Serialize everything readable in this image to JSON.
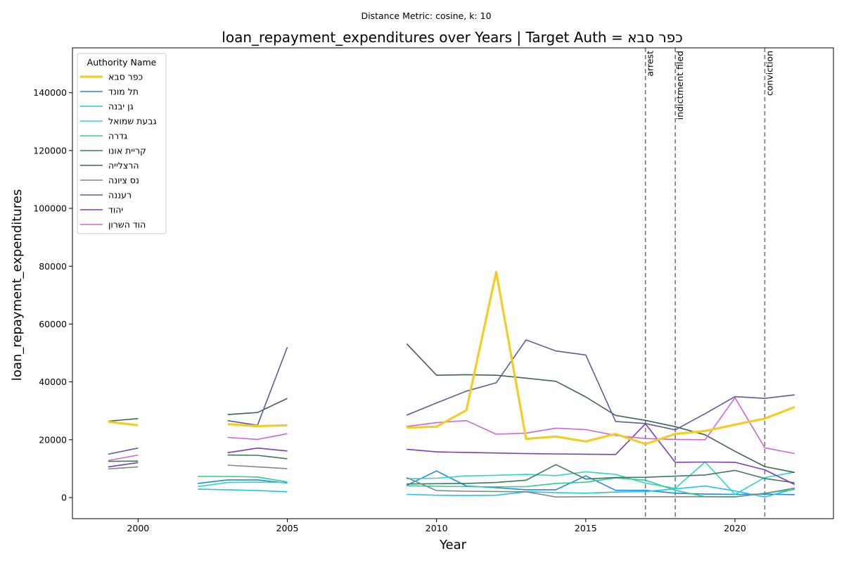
{
  "chart_data": {
    "type": "line",
    "suptitle": "Distance Metric: cosine, k: 10",
    "title": "loan_repayment_expenditures over Years | Target Auth = כפר סבא",
    "xlabel": "Year",
    "ylabel": "loan_repayment_expenditures",
    "xlim": [
      1997.8,
      2023.3
    ],
    "ylim": [
      -7300,
      155500
    ],
    "xticks": [
      2000,
      2005,
      2010,
      2015,
      2020
    ],
    "yticks": [
      0,
      20000,
      40000,
      60000,
      80000,
      100000,
      120000,
      140000
    ],
    "legend": {
      "title": "Authority Name",
      "placement": "top-left"
    },
    "events": [
      {
        "label": "arrest",
        "x": 2017
      },
      {
        "label": "indictment filed",
        "x": 2018
      },
      {
        "label": "conviction",
        "x": 2021
      }
    ],
    "series": [
      {
        "name": "כפר סבא",
        "color": "#f2cd24",
        "target": true,
        "points": [
          [
            1999,
            26200
          ],
          [
            2000,
            25000
          ],
          [
            null,
            null
          ],
          [
            2003,
            25400
          ],
          [
            2004,
            24700
          ],
          [
            2005,
            25000
          ],
          [
            null,
            null
          ],
          [
            2009,
            24200
          ],
          [
            2010,
            24500
          ],
          [
            2011,
            30200
          ],
          [
            2012,
            78000
          ],
          [
            2013,
            20300
          ],
          [
            2014,
            21100
          ],
          [
            2015,
            19400
          ],
          [
            2016,
            22000
          ],
          [
            2017,
            18500
          ],
          [
            2018,
            22000
          ],
          [
            2019,
            23000
          ],
          [
            2020,
            25200
          ],
          [
            2021,
            27300
          ],
          [
            2022,
            31300
          ]
        ]
      },
      {
        "name": "תל מונד",
        "color": "#1f8ae8",
        "points": [
          [
            2002,
            4900
          ],
          [
            2003,
            6100
          ],
          [
            2004,
            6100
          ],
          [
            2005,
            5000
          ],
          [
            null,
            null
          ],
          [
            2009,
            4200
          ],
          [
            2010,
            9200
          ],
          [
            2011,
            4000
          ],
          [
            2012,
            3400
          ],
          [
            2013,
            2700
          ],
          [
            2014,
            2700
          ],
          [
            2015,
            7500
          ],
          [
            2016,
            2500
          ],
          [
            2017,
            2500
          ],
          [
            2018,
            1500
          ],
          [
            2019,
            1200
          ],
          [
            2020,
            1100
          ],
          [
            2021,
            1200
          ],
          [
            2022,
            1000
          ]
        ]
      },
      {
        "name": "גן יבנה",
        "color": "#22c3e8",
        "points": [
          [
            2002,
            2900
          ],
          [
            2003,
            2700
          ],
          [
            2004,
            2400
          ],
          [
            2005,
            2000
          ],
          [
            null,
            null
          ],
          [
            2009,
            1100
          ],
          [
            2010,
            800
          ],
          [
            2011,
            700
          ],
          [
            2012,
            800
          ],
          [
            2013,
            2000
          ],
          [
            2014,
            1700
          ],
          [
            2015,
            1500
          ],
          [
            2016,
            1900
          ],
          [
            2017,
            2100
          ],
          [
            2018,
            3000
          ],
          [
            2019,
            4000
          ],
          [
            2020,
            2300
          ],
          [
            2021,
            200
          ],
          [
            2022,
            3000
          ]
        ]
      },
      {
        "name": "גבעת שמואל",
        "color": "#2ed8c0",
        "points": [
          [
            2002,
            3800
          ],
          [
            2003,
            5200
          ],
          [
            2004,
            5300
          ],
          [
            2005,
            5200
          ],
          [
            null,
            null
          ],
          [
            2009,
            6500
          ],
          [
            2010,
            6700
          ],
          [
            2011,
            7500
          ],
          [
            2012,
            7700
          ],
          [
            2013,
            8000
          ],
          [
            2014,
            7600
          ],
          [
            2015,
            8900
          ],
          [
            2016,
            8000
          ],
          [
            2017,
            5000
          ],
          [
            2018,
            3200
          ],
          [
            2019,
            12300
          ],
          [
            2020,
            1100
          ],
          [
            2021,
            6900
          ],
          [
            2022,
            8800
          ]
        ]
      },
      {
        "name": "גדרה",
        "color": "#2ecf8f",
        "points": [
          [
            2002,
            7300
          ],
          [
            2003,
            7300
          ],
          [
            2004,
            7100
          ],
          [
            2005,
            5400
          ],
          [
            null,
            null
          ],
          [
            2009,
            4100
          ],
          [
            2010,
            3900
          ],
          [
            2011,
            3800
          ],
          [
            2012,
            3700
          ],
          [
            2013,
            3800
          ],
          [
            2014,
            4900
          ],
          [
            2015,
            5300
          ],
          [
            2016,
            6800
          ],
          [
            2017,
            6000
          ],
          [
            2018,
            2500
          ],
          [
            2019,
            300
          ],
          [
            2020,
            200
          ],
          [
            2021,
            1500
          ],
          [
            2022,
            2800
          ]
        ]
      },
      {
        "name": "קריית אונו",
        "color": "#3b7a5c",
        "points": [
          [
            1999,
            12500
          ],
          [
            2000,
            12600
          ],
          [
            null,
            null
          ],
          [
            2003,
            14700
          ],
          [
            2004,
            14600
          ],
          [
            2005,
            13400
          ],
          [
            null,
            null
          ],
          [
            2009,
            4700
          ],
          [
            2010,
            4800
          ],
          [
            2011,
            4900
          ],
          [
            2012,
            5200
          ],
          [
            2013,
            6000
          ],
          [
            2014,
            11400
          ],
          [
            2015,
            6400
          ],
          [
            2016,
            6900
          ],
          [
            2017,
            7000
          ],
          [
            2018,
            7400
          ],
          [
            2019,
            7800
          ],
          [
            2020,
            9400
          ],
          [
            2021,
            6600
          ],
          [
            2022,
            5100
          ]
        ]
      },
      {
        "name": "הרצלייה",
        "color": "#3f6450",
        "points": [
          [
            1999,
            26400
          ],
          [
            2000,
            27300
          ],
          [
            null,
            null
          ],
          [
            2003,
            28700
          ],
          [
            2004,
            29400
          ],
          [
            2005,
            34300
          ],
          [
            null,
            null
          ],
          [
            2009,
            53200
          ],
          [
            2010,
            42300
          ],
          [
            2011,
            42500
          ],
          [
            2012,
            42300
          ],
          [
            2013,
            41300
          ],
          [
            2014,
            40200
          ],
          [
            2015,
            34800
          ],
          [
            2016,
            28400
          ],
          [
            2017,
            26700
          ],
          [
            2018,
            24500
          ],
          [
            2019,
            21700
          ],
          [
            2020,
            16000
          ],
          [
            2021,
            10700
          ],
          [
            2022,
            8700
          ]
        ]
      },
      {
        "name": "נס ציונה",
        "color": "#808a84",
        "points": [
          [
            1999,
            9900
          ],
          [
            2000,
            10600
          ],
          [
            null,
            null
          ],
          [
            2003,
            11200
          ],
          [
            2004,
            10600
          ],
          [
            2005,
            10000
          ],
          [
            null,
            null
          ],
          [
            2009,
            6900
          ],
          [
            2010,
            2400
          ],
          [
            2011,
            2200
          ],
          [
            2012,
            2100
          ],
          [
            2013,
            2000
          ],
          [
            2014,
            200
          ],
          [
            2015,
            300
          ],
          [
            2016,
            300
          ],
          [
            2017,
            300
          ],
          [
            2018,
            300
          ],
          [
            2019,
            300
          ],
          [
            2020,
            300
          ],
          [
            2021,
            1400
          ],
          [
            2022,
            3300
          ]
        ]
      },
      {
        "name": "רעננה",
        "color": "#5e5c98",
        "points": [
          [
            1999,
            15000
          ],
          [
            2000,
            17100
          ],
          [
            null,
            null
          ],
          [
            2003,
            26600
          ],
          [
            2004,
            25000
          ],
          [
            2005,
            52000
          ],
          [
            null,
            null
          ],
          [
            2009,
            28500
          ],
          [
            2010,
            32700
          ],
          [
            2011,
            36800
          ],
          [
            2012,
            39700
          ],
          [
            2013,
            54500
          ],
          [
            2014,
            50700
          ],
          [
            2015,
            49300
          ],
          [
            2016,
            26300
          ],
          [
            2017,
            25600
          ],
          [
            2018,
            23400
          ],
          [
            2019,
            29000
          ],
          [
            2020,
            34900
          ],
          [
            2021,
            34300
          ],
          [
            2022,
            35500
          ]
        ]
      },
      {
        "name": "יהוד",
        "color": "#7a3eb6",
        "points": [
          [
            1999,
            10600
          ],
          [
            2000,
            12100
          ],
          [
            null,
            null
          ],
          [
            2003,
            15500
          ],
          [
            2004,
            17100
          ],
          [
            2005,
            16100
          ],
          [
            null,
            null
          ],
          [
            2009,
            16700
          ],
          [
            2010,
            15800
          ],
          [
            2011,
            15600
          ],
          [
            2012,
            15400
          ],
          [
            2013,
            15200
          ],
          [
            2014,
            15100
          ],
          [
            2015,
            15000
          ],
          [
            2016,
            14900
          ],
          [
            2017,
            25500
          ],
          [
            2018,
            12200
          ],
          [
            2019,
            12300
          ],
          [
            2020,
            12200
          ],
          [
            2021,
            9600
          ],
          [
            2022,
            4500
          ]
        ]
      },
      {
        "name": "הוד השרון",
        "color": "#cc66d6",
        "points": [
          [
            1999,
            12800
          ],
          [
            2000,
            14700
          ],
          [
            null,
            null
          ],
          [
            2003,
            20800
          ],
          [
            2004,
            20100
          ],
          [
            2005,
            22100
          ],
          [
            null,
            null
          ],
          [
            2009,
            24600
          ],
          [
            2010,
            25900
          ],
          [
            2011,
            26600
          ],
          [
            2012,
            21900
          ],
          [
            2013,
            22300
          ],
          [
            2014,
            24000
          ],
          [
            2015,
            23500
          ],
          [
            2016,
            21500
          ],
          [
            2017,
            20400
          ],
          [
            2018,
            20100
          ],
          [
            2019,
            20000
          ],
          [
            2020,
            34500
          ],
          [
            2021,
            17200
          ],
          [
            2022,
            15200
          ]
        ]
      }
    ]
  }
}
